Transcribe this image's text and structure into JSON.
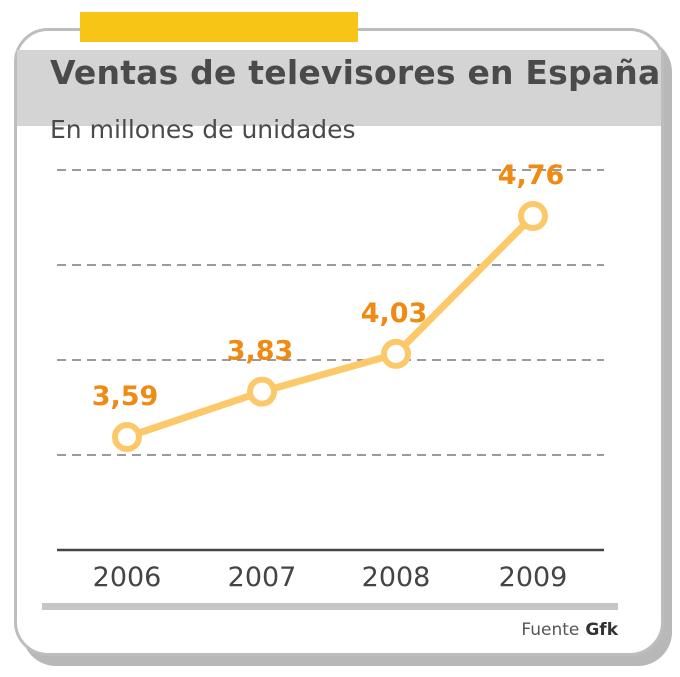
{
  "title": "Ventas de televisores en España",
  "subtitle": "En millones de unidades",
  "source": {
    "label": "Fuente",
    "name": "Gfk"
  },
  "colors": {
    "accent": "#f7c516",
    "line": "#fcc96a",
    "value_label": "#ef8a12",
    "grid": "#7a7a7a",
    "axis": "#444444"
  },
  "chart_data": {
    "type": "line",
    "categories": [
      "2006",
      "2007",
      "2008",
      "2009"
    ],
    "values": [
      3.59,
      3.83,
      4.03,
      4.76
    ],
    "value_labels": [
      "3,59",
      "3,83",
      "4,03",
      "4,76"
    ],
    "title": "Ventas de televisores en España",
    "subtitle": "En millones de unidades",
    "xlabel": "",
    "ylabel": "",
    "grid": true,
    "legend": "none"
  }
}
